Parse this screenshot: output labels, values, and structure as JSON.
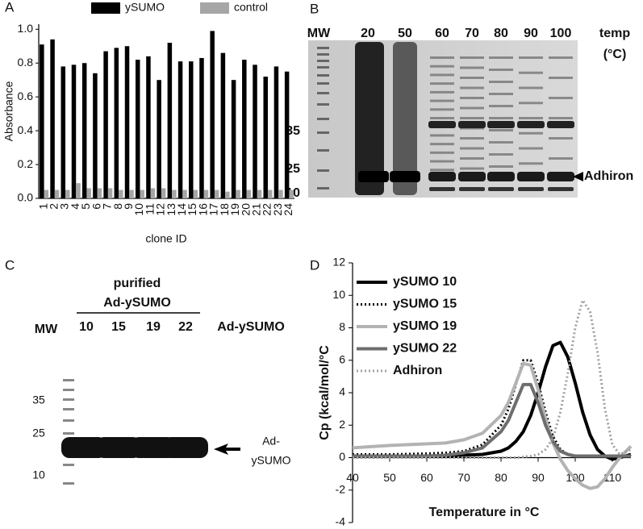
{
  "chart_data": [
    {
      "type": "bar",
      "panel": "A",
      "y_label": "Absorbance",
      "x_label": "clone ID",
      "categories": [
        "1",
        "2",
        "3",
        "4",
        "5",
        "6",
        "7",
        "8",
        "9",
        "10",
        "11",
        "12",
        "13",
        "14",
        "15",
        "16",
        "17",
        "18",
        "19",
        "20",
        "21",
        "22",
        "23",
        "24"
      ],
      "series": [
        {
          "name": "ySUMO",
          "color": "#000000",
          "values": [
            0.91,
            0.94,
            0.78,
            0.79,
            0.8,
            0.74,
            0.87,
            0.89,
            0.9,
            0.82,
            0.84,
            0.7,
            0.92,
            0.81,
            0.81,
            0.83,
            0.99,
            0.86,
            0.7,
            0.82,
            0.79,
            0.72,
            0.78,
            0.75
          ]
        },
        {
          "name": "control",
          "color": "#a6a6a6",
          "values": [
            0.05,
            0.05,
            0.05,
            0.09,
            0.06,
            0.06,
            0.06,
            0.05,
            0.05,
            0.05,
            0.06,
            0.06,
            0.05,
            0.05,
            0.05,
            0.05,
            0.05,
            0.04,
            0.05,
            0.05,
            0.05,
            0.05,
            0.05,
            0.05
          ]
        }
      ],
      "ylim": [
        0,
        1.03
      ],
      "yticks": [
        {
          "value": 0,
          "label": "0.0"
        },
        0.2,
        0.4,
        0.6,
        0.8,
        {
          "value": 1,
          "label": "1.0"
        }
      ],
      "legend": "top"
    },
    {
      "type": "line",
      "panel": "D",
      "y_label": "Cp (kcal/mol/°C",
      "x_label": "Temperature in °C",
      "x": [
        40,
        50,
        60,
        65,
        70,
        75,
        80,
        82,
        84,
        86,
        88,
        90,
        92,
        94,
        96,
        98,
        100,
        102,
        104,
        106,
        108,
        110,
        112,
        115
      ],
      "series": [
        {
          "name": "ySUMO 10",
          "color": "#000000",
          "style": "solid",
          "width": 4,
          "values": [
            0.1,
            0.1,
            0.1,
            0.1,
            0.15,
            0.2,
            0.4,
            0.6,
            1.0,
            1.6,
            2.6,
            4.0,
            5.6,
            6.9,
            7.1,
            6.2,
            4.6,
            2.8,
            1.4,
            0.5,
            0.1,
            -0.1,
            0,
            0.2
          ]
        },
        {
          "name": "ySUMO 15",
          "color": "#000000",
          "style": "dotted",
          "width": 3,
          "values": [
            0.2,
            0.2,
            0.25,
            0.3,
            0.4,
            0.8,
            2.0,
            3.0,
            4.5,
            6.0,
            6.0,
            4.6,
            2.8,
            1.3,
            0.5,
            0.2,
            0.1,
            0.1,
            0.1,
            0.1,
            0.1,
            0.1,
            0.1,
            0.1
          ]
        },
        {
          "name": "ySUMO 19",
          "color": "#b3b3b3",
          "style": "solid",
          "width": 4,
          "values": [
            0.6,
            0.75,
            0.85,
            0.9,
            1.1,
            1.5,
            2.6,
            3.4,
            4.6,
            5.8,
            5.7,
            4.2,
            2.4,
            0.9,
            -0.1,
            -0.8,
            -1.3,
            -1.7,
            -1.9,
            -1.8,
            -1.3,
            -0.6,
            0,
            0.7
          ]
        },
        {
          "name": "ySUMO 22",
          "color": "#6e6e6e",
          "style": "solid",
          "width": 4,
          "values": [
            0.1,
            0.1,
            0.1,
            0.15,
            0.3,
            0.6,
            1.6,
            2.3,
            3.4,
            4.5,
            4.5,
            3.4,
            2.0,
            1.0,
            0.4,
            0.2,
            0.1,
            0.1,
            0.1,
            0.1,
            0.1,
            0.1,
            0.1,
            0.1
          ]
        },
        {
          "name": "Adhiron",
          "color": "#a0a0a0",
          "style": "dotted",
          "width": 3,
          "values": [
            0,
            0,
            0,
            0,
            0,
            0,
            0,
            0,
            0,
            0.05,
            0.1,
            0.2,
            0.5,
            1.2,
            2.8,
            5.2,
            8.0,
            9.7,
            9.0,
            6.5,
            3.0,
            0.8,
            0.2,
            0.5
          ]
        }
      ],
      "xlim": [
        40,
        115
      ],
      "xticks": [
        40,
        50,
        60,
        70,
        80,
        90,
        100,
        110
      ],
      "ylim": [
        -4,
        12
      ],
      "yticks": [
        -4,
        -2,
        0,
        2,
        4,
        6,
        8,
        10,
        12
      ],
      "legend": "upper left"
    }
  ],
  "gels": [
    {
      "panel": "B",
      "mw_label": "MW",
      "lanes": [
        "20",
        "50",
        "60",
        "70",
        "80",
        "90",
        "100"
      ],
      "temp_label": "temp",
      "temp_unit": "(°C)",
      "markers": [
        "35",
        "25",
        "10"
      ],
      "arrow_label": "Adhiron"
    },
    {
      "panel": "C",
      "mw_label": "MW",
      "group_top": "purified",
      "group_name": "Ad-ySUMO",
      "lanes": [
        "10",
        "15",
        "19",
        "22"
      ],
      "side_label": "Ad-ySUMO",
      "markers": [
        "35",
        "25",
        "10"
      ],
      "arrow_label_1": "Ad-",
      "arrow_label_2": "ySUMO"
    }
  ]
}
